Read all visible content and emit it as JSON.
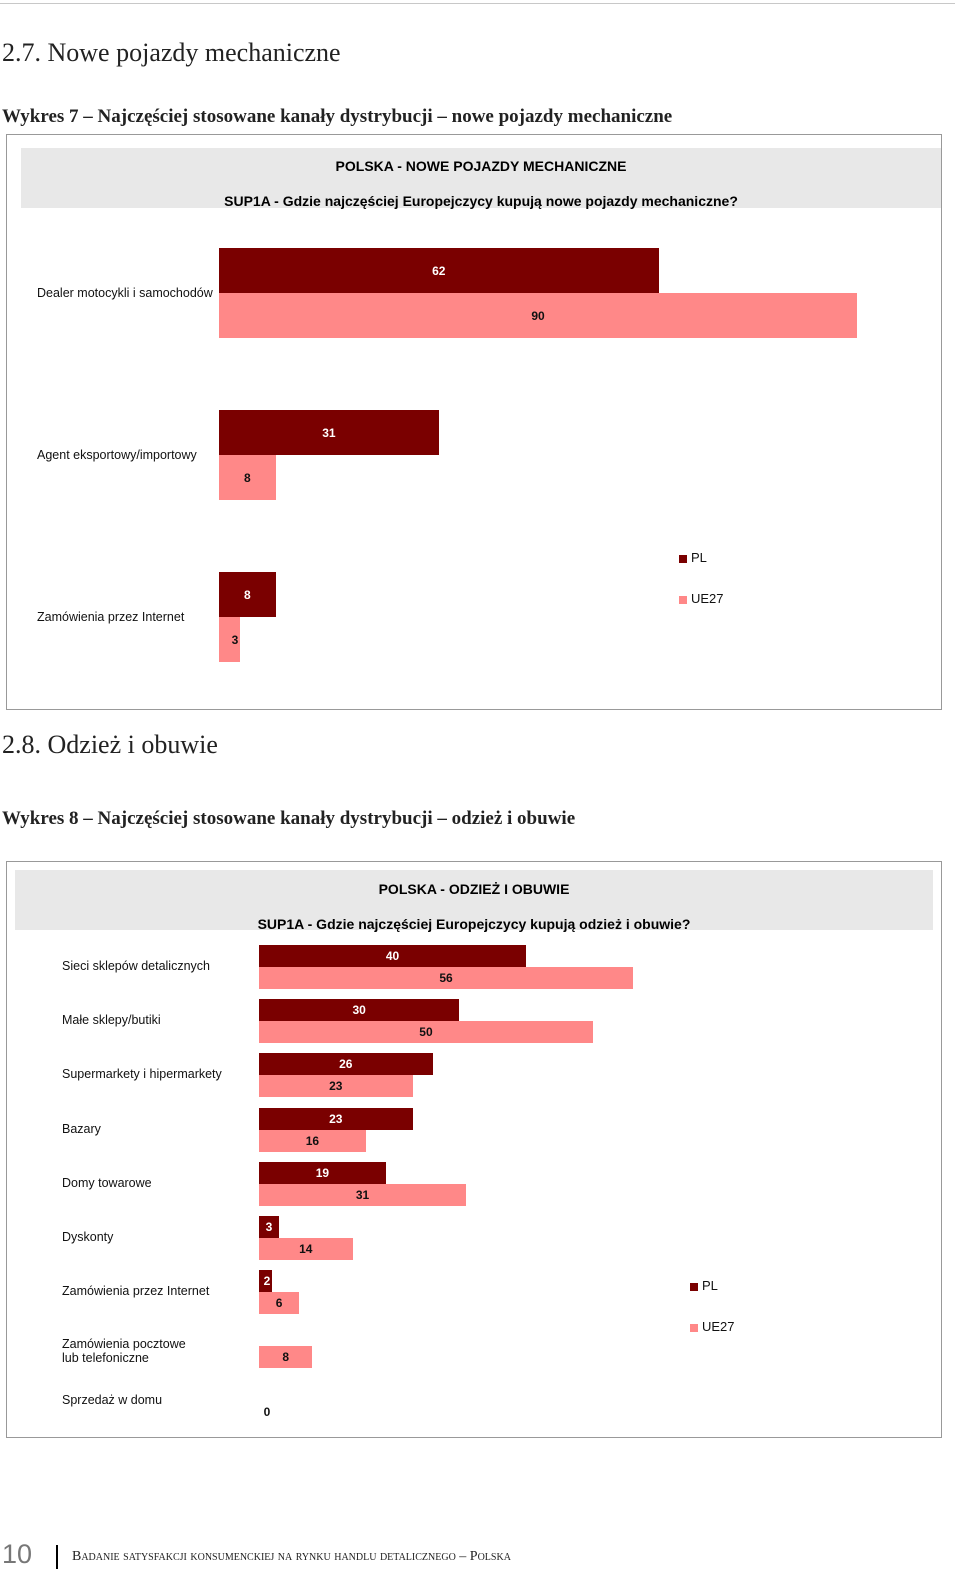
{
  "section1": {
    "heading": "2.7. Nowe pojazdy mechaniczne",
    "figure_title": "Wykres 7 – Najczęściej stosowane kanały dystrybucji – nowe pojazdy mechaniczne"
  },
  "section2": {
    "heading": "2.8. Odzież i obuwie",
    "figure_title": "Wykres 8 – Najczęściej stosowane kanały dystrybucji – odzież i obuwie"
  },
  "colors": {
    "PL": "#7a0000",
    "UE27": "#ff8888"
  },
  "chart_data": [
    {
      "type": "bar",
      "orientation": "horizontal",
      "title": "POLSKA - NOWE POJAZDY MECHANICZNE",
      "subtitle": "SUP1A - Gdzie najczęściej Europejczycy kupują nowe pojazdy mechaniczne?",
      "categories": [
        "Dealer motocykli i samochodów",
        "Agent eksportowy/importowy",
        "Zamówienia przez Internet"
      ],
      "series": [
        {
          "name": "PL",
          "values": [
            62,
            31,
            8
          ],
          "labels": [
            "62",
            "31",
            "8"
          ]
        },
        {
          "name": "UE27",
          "values": [
            90,
            8,
            3
          ],
          "labels": [
            "90",
            "8",
            "3"
          ]
        }
      ],
      "xlim": [
        0,
        90
      ],
      "legend": [
        "PL",
        "UE27"
      ]
    },
    {
      "type": "bar",
      "orientation": "horizontal",
      "title": "POLSKA - ODZIEŻ I OBUWIE",
      "subtitle": "SUP1A - Gdzie najczęściej Europejczycy kupują odzież i obuwie?",
      "categories": [
        "Sieci sklepów detalicznych",
        "Małe sklepy/butiki",
        "Supermarkety i hipermarkety",
        "Bazary",
        "Domy towarowe",
        "Dyskonty",
        "Zamówienia przez Internet",
        "Zamówienia pocztowe lub telefoniczne",
        "Sprzedaż w domu"
      ],
      "category_lines": [
        [
          "Sieci sklepów detalicznych"
        ],
        [
          "Małe sklepy/butiki"
        ],
        [
          "Supermarkety i hipermarkety"
        ],
        [
          "Bazary"
        ],
        [
          "Domy towarowe"
        ],
        [
          "Dyskonty"
        ],
        [
          "Zamówienia przez Internet"
        ],
        [
          "Zamówienia pocztowe",
          "lub telefoniczne"
        ],
        [
          "Sprzedaż w domu"
        ]
      ],
      "series": [
        {
          "name": "PL",
          "values": [
            40,
            30,
            26,
            23,
            19,
            3,
            2,
            0,
            0
          ],
          "labels": [
            "40",
            "30",
            "26",
            "23",
            "19",
            "3",
            "2",
            null,
            null
          ]
        },
        {
          "name": "UE27",
          "values": [
            56,
            50,
            23,
            16,
            31,
            14,
            6,
            8,
            0
          ],
          "labels": [
            "56",
            "50",
            "23",
            "16",
            "31",
            "14",
            "6",
            "8",
            "0"
          ]
        }
      ],
      "xlim": [
        0,
        56
      ],
      "legend": [
        "PL",
        "UE27"
      ]
    }
  ],
  "footer": {
    "page_number": "10",
    "text": "Badanie satysfakcji konsumenckiej na rynku handlu detalicznego – Polska"
  }
}
